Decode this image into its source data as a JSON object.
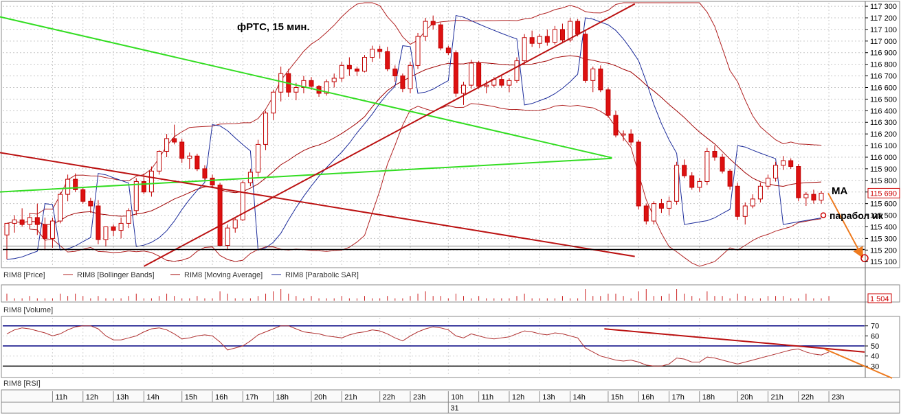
{
  "colors": {
    "bull": "#ffffff",
    "bear": "#dd1111",
    "bollinger": "#b02020",
    "ma": "#a00000",
    "sar": "#1a2a9a",
    "trend_green": "#33dd22",
    "trend_red": "#bb1111",
    "support": "#000000",
    "arrow": "#ee7a1e",
    "rsi_line": "#b03030",
    "rsi_level": "#000080",
    "volume": "#cc2222"
  },
  "chart_data": {
    "type": "candlestick",
    "title": "фРТС, 15 мин.",
    "price_axis": {
      "ylim": [
        115060,
        117330
      ],
      "ticks": [
        117300,
        117200,
        117100,
        117000,
        116900,
        116800,
        116700,
        116600,
        116500,
        116400,
        116300,
        116200,
        116100,
        116000,
        115900,
        115800,
        115700,
        115600,
        115500,
        115400,
        115300,
        115200,
        115100
      ],
      "tick_labels": [
        "117 300",
        "117 200",
        "117 100",
        "117 000",
        "116 900",
        "116 800",
        "116 700",
        "116 600",
        "116 500",
        "116 400",
        "116 300",
        "116 200",
        "116 100",
        "116 000",
        "115 900",
        "115 800",
        "115 700",
        "115 600",
        "115 500",
        "115 400",
        "115 300",
        "115 200",
        "115 100"
      ],
      "last_price": 115690,
      "last_price_label": "115 690"
    },
    "legend": [
      "RIM8 [Price]",
      "RIM8 [Bollinger Bands]",
      "RIM8 [Moving Average]",
      "RIM8 [Parabolic SAR]"
    ],
    "volume": {
      "label": "RIM8 [Volume]",
      "last_label": "1 504"
    },
    "rsi": {
      "label": "RIM8 [RSI]",
      "ylim": [
        20,
        78
      ],
      "ticks": [
        70,
        60,
        50,
        40,
        30
      ],
      "levels": [
        70,
        50,
        30
      ]
    },
    "time_axis": {
      "labels": [
        "11h",
        "12h",
        "13h",
        "14h",
        "15h",
        "16h",
        "17h",
        "18h",
        "20h",
        "21h",
        "22h",
        "23h",
        "10h",
        "11h",
        "12h",
        "13h",
        "14h",
        "15h",
        "16h",
        "17h",
        "18h",
        "20h",
        "21h",
        "22h",
        "23h"
      ],
      "date_label": "31"
    },
    "annotations": {
      "ma_label": "MA",
      "sar_label": "парабол ик"
    },
    "candles": [
      [
        115330,
        115430,
        115120,
        115430
      ],
      [
        115430,
        115500,
        115350,
        115460
      ],
      [
        115460,
        115560,
        115400,
        115420
      ],
      [
        115420,
        115520,
        115380,
        115480
      ],
      [
        115480,
        115600,
        115330,
        115420
      ],
      [
        115420,
        115480,
        115200,
        115300
      ],
      [
        115300,
        115480,
        115220,
        115450
      ],
      [
        115450,
        115700,
        115430,
        115680
      ],
      [
        115680,
        115850,
        115620,
        115810
      ],
      [
        115810,
        115860,
        115700,
        115720
      ],
      [
        115720,
        115740,
        115600,
        115620
      ],
      [
        115620,
        115650,
        115520,
        115580
      ],
      [
        115580,
        115630,
        115250,
        115290
      ],
      [
        115290,
        115400,
        115230,
        115400
      ],
      [
        115400,
        115420,
        115320,
        115370
      ],
      [
        115370,
        115480,
        115300,
        115430
      ],
      [
        115430,
        115560,
        115390,
        115540
      ],
      [
        115540,
        115820,
        115500,
        115790
      ],
      [
        115790,
        115860,
        115680,
        115700
      ],
      [
        115700,
        115920,
        115660,
        115880
      ],
      [
        115880,
        116060,
        115850,
        116050
      ],
      [
        116050,
        116200,
        116000,
        116160
      ],
      [
        116160,
        116280,
        116110,
        116130
      ],
      [
        116130,
        116160,
        115950,
        115990
      ],
      [
        115990,
        116040,
        115900,
        116010
      ],
      [
        116010,
        116030,
        115880,
        115900
      ],
      [
        115900,
        115930,
        115800,
        115820
      ],
      [
        115820,
        115850,
        115740,
        115760
      ],
      [
        115760,
        115780,
        115230,
        115240
      ],
      [
        115240,
        115420,
        115200,
        115390
      ],
      [
        115390,
        115480,
        115350,
        115460
      ],
      [
        115460,
        115800,
        115450,
        115780
      ],
      [
        115780,
        115900,
        115750,
        115870
      ],
      [
        115870,
        116150,
        115830,
        116110
      ],
      [
        116110,
        116400,
        116060,
        116380
      ],
      [
        116380,
        116580,
        116320,
        116560
      ],
      [
        116560,
        116780,
        116480,
        116720
      ],
      [
        116720,
        116760,
        116520,
        116560
      ],
      [
        116560,
        116640,
        116490,
        116600
      ],
      [
        116600,
        116700,
        116550,
        116660
      ],
      [
        116660,
        116690,
        116580,
        116610
      ],
      [
        116610,
        116620,
        116520,
        116550
      ],
      [
        116550,
        116670,
        116530,
        116650
      ],
      [
        116650,
        116720,
        116600,
        116680
      ],
      [
        116680,
        116820,
        116650,
        116790
      ],
      [
        116790,
        116860,
        116700,
        116760
      ],
      [
        116760,
        116780,
        116700,
        116740
      ],
      [
        116740,
        116880,
        116730,
        116860
      ],
      [
        116860,
        116960,
        116820,
        116930
      ],
      [
        116930,
        116960,
        116850,
        116910
      ],
      [
        116910,
        116950,
        116740,
        116760
      ],
      [
        116760,
        116790,
        116650,
        116700
      ],
      [
        116700,
        116720,
        116560,
        116590
      ],
      [
        116590,
        116820,
        116550,
        116790
      ],
      [
        116790,
        117070,
        116760,
        117040
      ],
      [
        117040,
        117200,
        117000,
        117170
      ],
      [
        117170,
        117220,
        117100,
        117140
      ],
      [
        117140,
        117160,
        116920,
        116940
      ],
      [
        116940,
        116960,
        116880,
        116900
      ],
      [
        116900,
        116920,
        116520,
        116550
      ],
      [
        116550,
        116650,
        116450,
        116620
      ],
      [
        116620,
        116840,
        116590,
        116810
      ],
      [
        116810,
        116830,
        116590,
        116610
      ],
      [
        116610,
        116660,
        116550,
        116620
      ],
      [
        116620,
        116690,
        116600,
        116670
      ],
      [
        116670,
        116700,
        116600,
        116620
      ],
      [
        116620,
        116680,
        116560,
        116660
      ],
      [
        116660,
        116860,
        116640,
        116830
      ],
      [
        116830,
        117060,
        116800,
        117030
      ],
      [
        117030,
        117090,
        116950,
        116980
      ],
      [
        116980,
        117060,
        116940,
        117040
      ],
      [
        117040,
        117100,
        116960,
        116990
      ],
      [
        116990,
        117130,
        116970,
        117100
      ],
      [
        117100,
        117150,
        116980,
        117010
      ],
      [
        117010,
        117200,
        116990,
        117170
      ],
      [
        117170,
        117190,
        117040,
        117060
      ],
      [
        117060,
        117090,
        116640,
        116660
      ],
      [
        116660,
        116780,
        116560,
        116760
      ],
      [
        116760,
        116790,
        116560,
        116580
      ],
      [
        116580,
        116600,
        116340,
        116360
      ],
      [
        116360,
        116400,
        116170,
        116190
      ],
      [
        116190,
        116230,
        116140,
        116200
      ],
      [
        116200,
        116240,
        116100,
        116130
      ],
      [
        116130,
        116150,
        115550,
        115580
      ],
      [
        115580,
        115600,
        115420,
        115450
      ],
      [
        115450,
        115620,
        115420,
        115600
      ],
      [
        115600,
        115640,
        115520,
        115560
      ],
      [
        115560,
        115660,
        115500,
        115620
      ],
      [
        115620,
        115960,
        115590,
        115930
      ],
      [
        115930,
        115980,
        115820,
        115840
      ],
      [
        115840,
        115870,
        115720,
        115740
      ],
      [
        115740,
        115820,
        115700,
        115790
      ],
      [
        115790,
        116080,
        115760,
        116050
      ],
      [
        116050,
        116100,
        115970,
        116000
      ],
      [
        116000,
        116030,
        115860,
        115880
      ],
      [
        115880,
        115900,
        115720,
        115750
      ],
      [
        115750,
        115780,
        115460,
        115490
      ],
      [
        115490,
        115610,
        115420,
        115580
      ],
      [
        115580,
        115680,
        115560,
        115640
      ],
      [
        115640,
        115780,
        115610,
        115750
      ],
      [
        115750,
        115850,
        115720,
        115820
      ],
      [
        115820,
        115960,
        115790,
        115930
      ],
      [
        115930,
        116010,
        115890,
        115970
      ],
      [
        115970,
        115990,
        115900,
        115920
      ],
      [
        115920,
        115940,
        115620,
        115650
      ],
      [
        115650,
        115700,
        115580,
        115680
      ],
      [
        115680,
        115720,
        115600,
        115630
      ],
      [
        115630,
        115710,
        115600,
        115690
      ]
    ],
    "volumes": [
      3,
      1,
      1,
      2,
      1,
      1,
      1,
      3,
      2,
      3,
      2,
      1,
      2,
      1,
      1,
      1,
      2,
      3,
      1,
      1,
      2,
      3,
      2,
      1,
      1,
      2,
      1,
      1,
      4,
      3,
      1,
      1,
      1,
      2,
      3,
      4,
      5,
      3,
      2,
      1,
      2,
      1,
      1,
      1,
      2,
      1,
      1,
      2,
      1,
      1,
      2,
      1,
      1,
      2,
      3,
      4,
      2,
      2,
      1,
      3,
      2,
      1,
      2,
      1,
      1,
      1,
      1,
      2,
      3,
      1,
      1,
      1,
      1,
      2,
      1,
      1,
      5,
      2,
      2,
      3,
      3,
      2,
      1,
      4,
      5,
      2,
      2,
      3,
      5,
      3,
      2,
      1,
      4,
      2,
      2,
      1,
      3,
      2,
      1,
      1,
      2,
      2,
      2,
      1,
      1,
      3,
      1,
      1,
      2
    ],
    "rsi_values": [
      62,
      66,
      68,
      67,
      65,
      63,
      60,
      62,
      66,
      69,
      70,
      70,
      67,
      60,
      56,
      56,
      58,
      60,
      64,
      67,
      68,
      66,
      62,
      57,
      58,
      60,
      61,
      60,
      54,
      46,
      48,
      50,
      55,
      61,
      64,
      67,
      70,
      70,
      67,
      64,
      63,
      62,
      60,
      59,
      58,
      61,
      63,
      64,
      66,
      65,
      62,
      58,
      55,
      60,
      64,
      67,
      69,
      68,
      66,
      60,
      58,
      62,
      60,
      58,
      57,
      58,
      59,
      62,
      65,
      64,
      62,
      61,
      63,
      62,
      60,
      58,
      48,
      44,
      40,
      38,
      36,
      35,
      36,
      34,
      31,
      30,
      30,
      32,
      38,
      37,
      34,
      34,
      39,
      38,
      36,
      34,
      32,
      34,
      36,
      38,
      40,
      42,
      44,
      46,
      47,
      44,
      42,
      41,
      44
    ]
  }
}
